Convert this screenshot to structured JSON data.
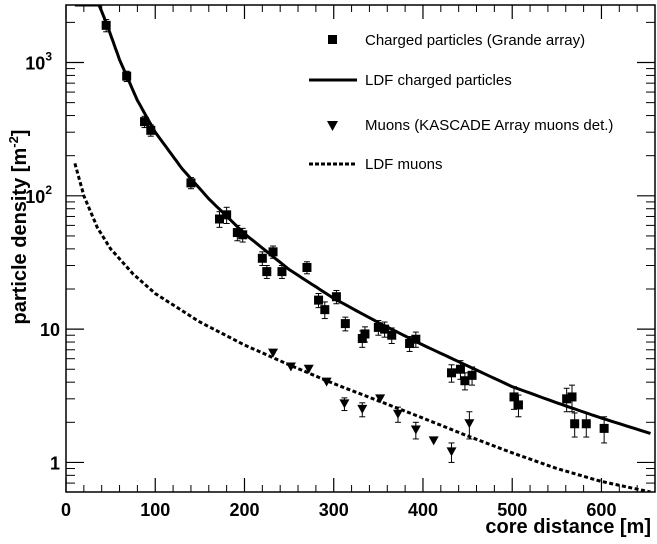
{
  "chart_data": {
    "type": "scatter",
    "title": "",
    "xlabel": "core distance [m]",
    "ylabel_main": "particle density [m",
    "ylabel_sup": "-2",
    "ylabel_close": "]",
    "xlim": [
      0,
      660
    ],
    "ylim": [
      0.6,
      2700
    ],
    "y_scale": "log",
    "grid": false,
    "legend_position": "top-right",
    "x_ticks": [
      0,
      100,
      200,
      300,
      400,
      500,
      600
    ],
    "y_ticks": [
      {
        "value": 1,
        "base": "1",
        "exp": ""
      },
      {
        "value": 10,
        "base": "10",
        "exp": ""
      },
      {
        "value": 100,
        "base": "10",
        "exp": "2"
      },
      {
        "value": 1000,
        "base": "10",
        "exp": "3"
      }
    ],
    "series": [
      {
        "name": "Charged particles (Grande array)",
        "kind": "points",
        "marker": "square",
        "points": [
          {
            "x": 45,
            "y": 1900,
            "err": 200
          },
          {
            "x": 68,
            "y": 790,
            "err": 70
          },
          {
            "x": 88,
            "y": 360,
            "err": 35
          },
          {
            "x": 95,
            "y": 310,
            "err": 30
          },
          {
            "x": 140,
            "y": 125,
            "err": 12
          },
          {
            "x": 172,
            "y": 67,
            "err": 9
          },
          {
            "x": 180,
            "y": 72,
            "err": 10
          },
          {
            "x": 192,
            "y": 53,
            "err": 7
          },
          {
            "x": 198,
            "y": 51,
            "err": 6
          },
          {
            "x": 220,
            "y": 34,
            "err": 4
          },
          {
            "x": 225,
            "y": 27,
            "err": 3
          },
          {
            "x": 232,
            "y": 38,
            "err": 4
          },
          {
            "x": 242,
            "y": 27,
            "err": 3
          },
          {
            "x": 270,
            "y": 29,
            "err": 3
          },
          {
            "x": 283,
            "y": 16.5,
            "err": 2
          },
          {
            "x": 290,
            "y": 14,
            "err": 2
          },
          {
            "x": 303,
            "y": 17.5,
            "err": 2
          },
          {
            "x": 313,
            "y": 11,
            "err": 1.3
          },
          {
            "x": 332,
            "y": 8.5,
            "err": 1.2
          },
          {
            "x": 335,
            "y": 9.2,
            "err": 1.2
          },
          {
            "x": 350,
            "y": 10.3,
            "err": 1.3
          },
          {
            "x": 357,
            "y": 10,
            "err": 1.3
          },
          {
            "x": 365,
            "y": 9,
            "err": 1.2
          },
          {
            "x": 385,
            "y": 7.8,
            "err": 1.0
          },
          {
            "x": 392,
            "y": 8.4,
            "err": 1.1
          },
          {
            "x": 432,
            "y": 4.7,
            "err": 0.7
          },
          {
            "x": 442,
            "y": 5.0,
            "err": 0.8
          },
          {
            "x": 447,
            "y": 4.1,
            "err": 0.6
          },
          {
            "x": 455,
            "y": 4.5,
            "err": 0.7
          },
          {
            "x": 502,
            "y": 3.1,
            "err": 0.6
          },
          {
            "x": 507,
            "y": 2.7,
            "err": 0.5
          },
          {
            "x": 561,
            "y": 3.0,
            "err": 0.6
          },
          {
            "x": 567,
            "y": 3.1,
            "err": 0.7
          },
          {
            "x": 570,
            "y": 1.95,
            "err": 0.4
          },
          {
            "x": 583,
            "y": 1.95,
            "err": 0.4
          },
          {
            "x": 603,
            "y": 1.8,
            "err": 0.4
          }
        ]
      },
      {
        "name": "LDF charged particles",
        "kind": "line",
        "style": "solid",
        "points": [
          [
            10,
            2700
          ],
          [
            37,
            2700
          ],
          [
            45,
            2000
          ],
          [
            60,
            1050
          ],
          [
            80,
            520
          ],
          [
            100,
            300
          ],
          [
            130,
            160
          ],
          [
            160,
            95
          ],
          [
            200,
            52
          ],
          [
            250,
            28
          ],
          [
            300,
            17
          ],
          [
            350,
            11.2
          ],
          [
            400,
            7.6
          ],
          [
            450,
            5.3
          ],
          [
            500,
            3.7
          ],
          [
            550,
            2.8
          ],
          [
            600,
            2.15
          ],
          [
            655,
            1.65
          ]
        ]
      },
      {
        "name": "Muons (KASCADE Array muons det.)",
        "kind": "points",
        "marker": "triangle-down",
        "points": [
          {
            "x": 232,
            "y": 6.6,
            "err": 0
          },
          {
            "x": 252,
            "y": 5.2,
            "err": 0
          },
          {
            "x": 272,
            "y": 5.0,
            "err": 0
          },
          {
            "x": 292,
            "y": 4.0,
            "err": 0
          },
          {
            "x": 312,
            "y": 2.75,
            "err": 0.3
          },
          {
            "x": 332,
            "y": 2.5,
            "err": 0.3
          },
          {
            "x": 352,
            "y": 3.0,
            "err": 0
          },
          {
            "x": 372,
            "y": 2.3,
            "err": 0.3
          },
          {
            "x": 392,
            "y": 1.75,
            "err": 0.25
          },
          {
            "x": 412,
            "y": 1.45,
            "err": 0
          },
          {
            "x": 432,
            "y": 1.2,
            "err": 0.2
          },
          {
            "x": 452,
            "y": 1.95,
            "err": 0.45
          }
        ]
      },
      {
        "name": "LDF muons",
        "kind": "line",
        "style": "dashed",
        "points": [
          [
            10,
            175
          ],
          [
            20,
            100
          ],
          [
            35,
            58
          ],
          [
            50,
            40
          ],
          [
            75,
            26
          ],
          [
            100,
            18.5
          ],
          [
            150,
            11.3
          ],
          [
            200,
            7.6
          ],
          [
            250,
            5.4
          ],
          [
            300,
            3.9
          ],
          [
            350,
            2.9
          ],
          [
            400,
            2.15
          ],
          [
            450,
            1.58
          ],
          [
            500,
            1.18
          ],
          [
            550,
            0.9
          ],
          [
            600,
            0.72
          ],
          [
            655,
            0.6
          ]
        ]
      }
    ]
  }
}
